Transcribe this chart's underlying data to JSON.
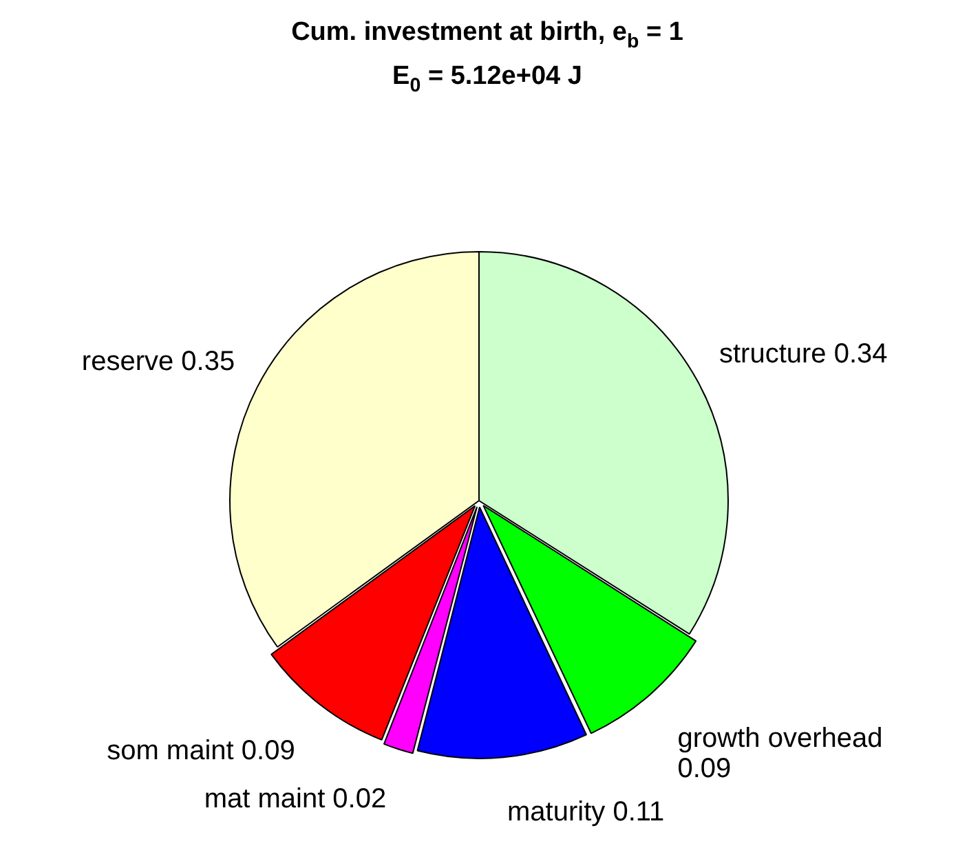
{
  "chart_data": {
    "type": "pie",
    "title": "Cum. investment at birth, e$_{b}$ = 1",
    "subtitle": "E$_{0}$ = 5.12e+04 J",
    "categories": [
      "structure",
      "growth overhead",
      "maturity",
      "mat maint",
      "som maint",
      "reserve"
    ],
    "values": [
      0.34,
      0.09,
      0.11,
      0.02,
      0.09,
      0.35
    ],
    "colors": [
      "#ccffcc",
      "#00ff00",
      "#0000ff",
      "#ff00ff",
      "#ff0000",
      "#ffffcc"
    ],
    "data_labels": true
  }
}
